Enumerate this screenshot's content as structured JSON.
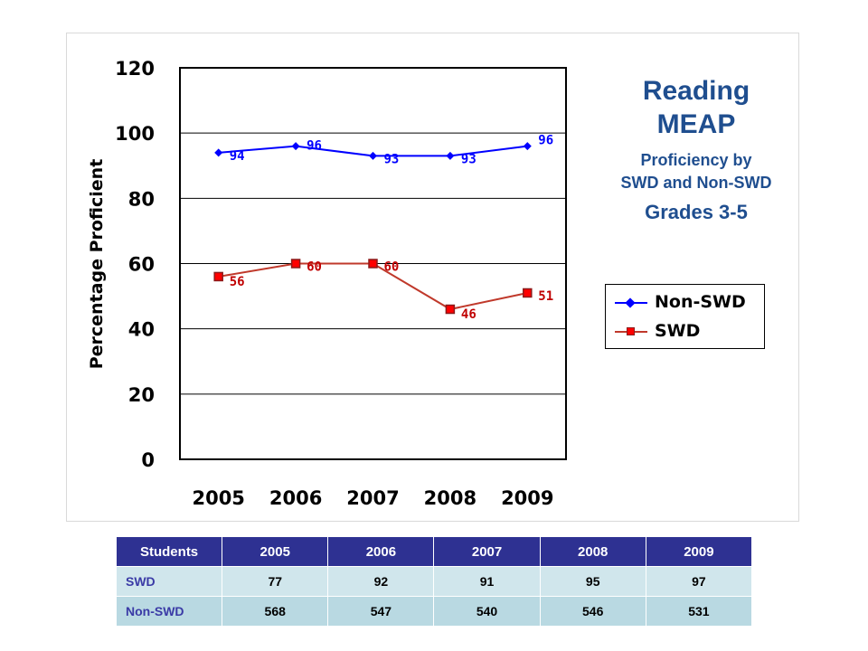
{
  "title": {
    "line1": "Reading",
    "line2": "MEAP",
    "line3": "Proficiency by",
    "line4": "SWD and Non-SWD",
    "line5": "Grades 3-5"
  },
  "chart_data": {
    "type": "line",
    "title": "Reading MEAP Proficiency by SWD and Non-SWD Grades 3-5",
    "xlabel": "",
    "ylabel": "Percentage Proficient",
    "categories": [
      "2005",
      "2006",
      "2007",
      "2008",
      "2009"
    ],
    "ylim": [
      0,
      120
    ],
    "yticks": [
      0,
      20,
      40,
      60,
      80,
      100,
      120
    ],
    "grid": true,
    "legend_position": "right",
    "series": [
      {
        "name": "Non-SWD",
        "values": [
          94,
          96,
          93,
          93,
          96
        ],
        "color": "#0000ff",
        "marker": "diamond",
        "label_color": "#0000ff"
      },
      {
        "name": "SWD",
        "values": [
          56,
          60,
          60,
          46,
          51
        ],
        "color": "#c0392b",
        "marker": "square",
        "label_color": "#c00000"
      }
    ]
  },
  "table": {
    "headers": [
      "Students",
      "2005",
      "2006",
      "2007",
      "2008",
      "2009"
    ],
    "rows": [
      {
        "label": "SWD",
        "values": [
          "77",
          "92",
          "91",
          "95",
          "97"
        ]
      },
      {
        "label": "Non-SWD",
        "values": [
          "568",
          "547",
          "540",
          "546",
          "531"
        ]
      }
    ]
  }
}
